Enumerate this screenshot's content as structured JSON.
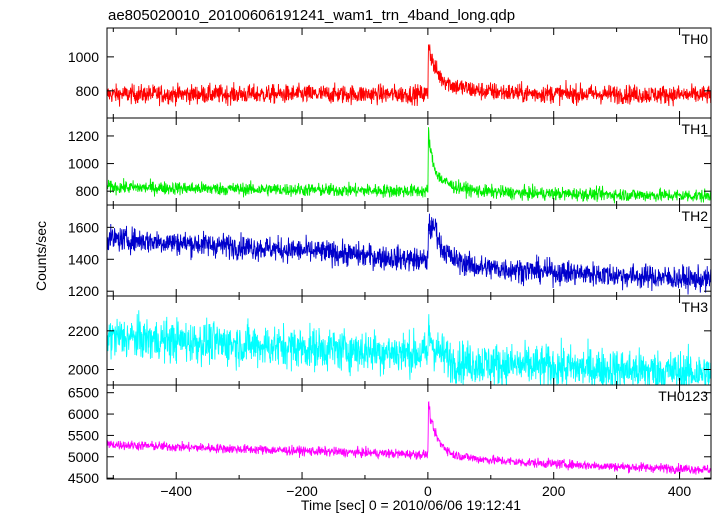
{
  "chart_data": {
    "type": "line",
    "title": "ae805020010_20100606191241_wam1_trn_4band_long.qdp",
    "xlabel": "Time [sec] 0 = 2010/06/06 19:12:41",
    "ylabel": "Counts/sec",
    "xlim": [
      -510,
      450
    ],
    "x_ticks": [
      -400,
      -200,
      0,
      200,
      400
    ],
    "x_tick_labels": [
      "−400",
      "−200",
      "0",
      "200",
      "400"
    ],
    "grid": false,
    "series": [
      {
        "name": "TH0",
        "color": "#ff0000",
        "ylim": [
          640,
          1170
        ],
        "y_ticks": [
          800,
          1000
        ],
        "y_tick_labels": [
          "800",
          "1000"
        ],
        "profile": {
          "x": [
            -510,
            -300,
            0,
            1,
            4,
            10,
            20,
            40,
            80,
            150,
            300,
            450
          ],
          "y": [
            780,
            780,
            780,
            1100,
            1020,
            940,
            880,
            830,
            800,
            785,
            780,
            775
          ]
        },
        "noise_sd": 28
      },
      {
        "name": "TH1",
        "color": "#00ee00",
        "ylim": [
          700,
          1330
        ],
        "y_ticks": [
          800,
          1000,
          1200
        ],
        "y_tick_labels": [
          "800",
          "1000",
          "1200"
        ],
        "profile": {
          "x": [
            -510,
            -300,
            0,
            1,
            4,
            10,
            20,
            40,
            80,
            150,
            300,
            450
          ],
          "y": [
            830,
            815,
            800,
            1230,
            1100,
            970,
            890,
            835,
            800,
            785,
            775,
            765
          ]
        },
        "noise_sd": 24
      },
      {
        "name": "TH2",
        "color": "#0000cc",
        "ylim": [
          1170,
          1740
        ],
        "y_ticks": [
          1200,
          1400,
          1600
        ],
        "y_tick_labels": [
          "1200",
          "1400",
          "1600"
        ],
        "profile": {
          "x": [
            -510,
            -300,
            -150,
            0,
            1,
            5,
            12,
            20,
            40,
            80,
            200,
            450
          ],
          "y": [
            1530,
            1480,
            1440,
            1390,
            1640,
            1580,
            1610,
            1480,
            1400,
            1350,
            1320,
            1270
          ]
        },
        "noise_sd": 38
      },
      {
        "name": "TH3",
        "color": "#00ffff",
        "ylim": [
          1920,
          2380
        ],
        "y_ticks": [
          2000,
          2200
        ],
        "y_tick_labels": [
          "2000",
          "2200"
        ],
        "profile": {
          "x": [
            -510,
            -300,
            0,
            1,
            10,
            40,
            150,
            450
          ],
          "y": [
            2170,
            2130,
            2080,
            2200,
            2110,
            2040,
            2020,
            1980
          ]
        },
        "noise_sd": 55
      },
      {
        "name": "TH0123",
        "color": "#ff00ff",
        "ylim": [
          4480,
          6680
        ],
        "y_ticks": [
          4500,
          5000,
          5500,
          6000,
          6500
        ],
        "y_tick_labels": [
          "4500",
          "5000",
          "5500",
          "6000",
          "6500"
        ],
        "profile": {
          "x": [
            -510,
            -300,
            0,
            1,
            4,
            10,
            20,
            40,
            80,
            150,
            300,
            450
          ],
          "y": [
            5290,
            5180,
            5050,
            6300,
            5900,
            5600,
            5300,
            5050,
            4950,
            4870,
            4770,
            4700
          ]
        },
        "noise_sd": 55
      }
    ]
  }
}
